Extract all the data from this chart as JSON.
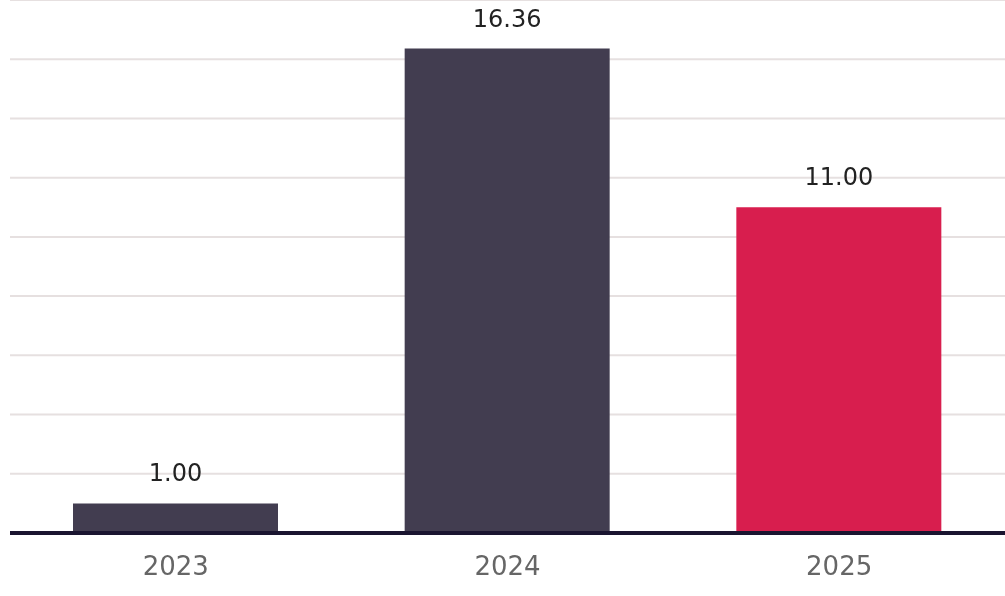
{
  "chart_data": {
    "type": "bar",
    "categories": [
      "2023",
      "2024",
      "2025"
    ],
    "values": [
      1.0,
      16.36,
      11.0
    ],
    "value_labels": [
      "1.00",
      "16.36",
      "11.00"
    ],
    "colors": [
      "#423d50",
      "#423d50",
      "#d81e4e"
    ],
    "ylim": [
      0,
      18
    ],
    "grid": "y",
    "tick_labels": "x"
  }
}
